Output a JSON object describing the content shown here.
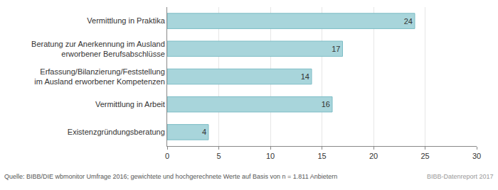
{
  "chart_data": {
    "type": "bar",
    "orientation": "horizontal",
    "categories": [
      "Vermittlung in Praktika",
      "Beratung zur Anerkennung im Ausland\nerworbener Berufsabschlüsse",
      "Erfassung/Bilanzierung/Feststellung\nim Ausland erworbener Kompetenzen",
      "Vermittlung in Arbeit",
      "Existenzgründungsberatung"
    ],
    "values": [
      24,
      17,
      14,
      16,
      4
    ],
    "color": "#a8d5db",
    "xlim": [
      0,
      30
    ],
    "xticks": [
      0,
      5,
      10,
      15,
      20,
      25,
      30
    ],
    "grid": true,
    "data_labels": true,
    "annotations": [
      "Quelle: BIBB/DIE wbmonitor Umfrage 2016; gewichtete und hochgerechnete Werte auf Basis von n = 1.811 Anbietern",
      "BIBB-Datenreport 2017"
    ]
  }
}
